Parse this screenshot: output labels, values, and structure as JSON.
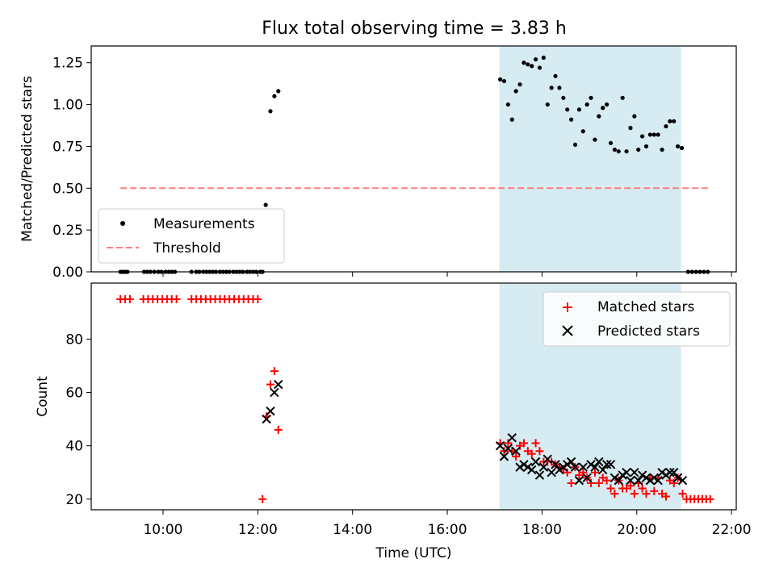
{
  "figure": {
    "title": "Flux total observing time = 3.83 h"
  },
  "chart_data": [
    {
      "type": "scatter",
      "ylabel": "Matched/Predicted stars",
      "xlim": [
        "08:29",
        "22:06"
      ],
      "ylim": [
        0,
        1.35
      ],
      "y_ticks": [
        "0.00",
        "0.25",
        "0.50",
        "0.75",
        "1.00",
        "1.25"
      ],
      "y_tick_values": [
        0,
        0.25,
        0.5,
        0.75,
        1.0,
        1.25
      ],
      "shaded_span": [
        "17:06",
        "20:56"
      ],
      "threshold": {
        "label": "Threshold",
        "value": 0.5,
        "x": [
          "09:06",
          "21:30"
        ],
        "color": "#ff7f7f"
      },
      "legend": [
        "Measurements",
        "Threshold"
      ],
      "legend_placement": "lower-left",
      "series": [
        {
          "name": "Measurements",
          "color": "#000000",
          "x": [
            "09:06",
            "09:09",
            "09:12",
            "09:15",
            "09:36",
            "09:40",
            "09:44",
            "09:49",
            "09:54",
            "09:58",
            "10:03",
            "10:07",
            "10:11",
            "10:15",
            "10:36",
            "10:42",
            "10:46",
            "10:51",
            "10:55",
            "10:59",
            "11:03",
            "11:07",
            "11:12",
            "11:16",
            "11:20",
            "11:24",
            "11:29",
            "11:33",
            "11:37",
            "11:41",
            "11:46",
            "11:50",
            "11:54",
            "11:58",
            "12:03",
            "12:06",
            "12:10",
            "12:16",
            "12:21",
            "12:26",
            "17:07",
            "17:12",
            "17:17",
            "17:22",
            "17:27",
            "17:32",
            "17:37",
            "17:42",
            "17:47",
            "17:52",
            "17:57",
            "18:02",
            "18:07",
            "18:12",
            "18:17",
            "18:22",
            "18:27",
            "18:32",
            "18:37",
            "18:42",
            "18:47",
            "18:52",
            "18:57",
            "19:02",
            "19:07",
            "19:12",
            "19:17",
            "19:22",
            "19:27",
            "19:32",
            "19:37",
            "19:42",
            "19:47",
            "19:52",
            "19:57",
            "20:02",
            "20:07",
            "20:12",
            "20:17",
            "20:22",
            "20:27",
            "20:32",
            "20:37",
            "20:42",
            "20:47",
            "20:52",
            "20:57",
            "21:05",
            "21:10",
            "21:15",
            "21:20",
            "21:25",
            "21:30"
          ],
          "y": [
            0,
            0,
            0,
            0,
            0,
            0,
            0,
            0,
            0,
            0,
            0,
            0,
            0,
            0,
            0,
            0,
            0,
            0,
            0,
            0,
            0,
            0,
            0,
            0,
            0,
            0,
            0,
            0,
            0,
            0,
            0,
            0,
            0,
            0,
            0,
            0,
            0.4,
            0.96,
            1.05,
            1.08,
            1.15,
            1.14,
            1.0,
            0.91,
            1.08,
            1.12,
            1.25,
            1.24,
            1.23,
            1.27,
            1.22,
            1.28,
            1.0,
            1.1,
            1.17,
            1.1,
            1.04,
            0.97,
            0.91,
            0.76,
            0.97,
            0.84,
            1.0,
            1.04,
            0.79,
            0.93,
            0.98,
            1.0,
            0.77,
            0.73,
            0.72,
            1.04,
            0.72,
            0.86,
            0.93,
            0.73,
            0.81,
            0.75,
            0.82,
            0.82,
            0.82,
            0.73,
            0.87,
            0.9,
            0.9,
            0.75,
            0.74,
            0,
            0,
            0,
            0,
            0,
            0
          ]
        }
      ]
    },
    {
      "type": "scatter",
      "xlabel": "Time (UTC)",
      "ylabel": "Count",
      "xlim": [
        "08:29",
        "22:06"
      ],
      "ylim": [
        16,
        101
      ],
      "x_ticks": [
        "10:00",
        "12:00",
        "14:00",
        "16:00",
        "18:00",
        "20:00",
        "22:00"
      ],
      "y_ticks": [
        "20",
        "40",
        "60",
        "80"
      ],
      "y_tick_values": [
        20,
        40,
        60,
        80
      ],
      "shaded_span": [
        "17:06",
        "20:56"
      ],
      "legend": [
        "Matched stars",
        "Predicted stars"
      ],
      "legend_placement": "upper-right",
      "series": [
        {
          "name": "Matched stars",
          "color": "#ff0000",
          "x": [
            "09:06",
            "09:12",
            "09:18",
            "09:35",
            "09:41",
            "09:47",
            "09:53",
            "09:59",
            "10:05",
            "10:11",
            "10:17",
            "10:36",
            "10:42",
            "10:48",
            "10:54",
            "11:00",
            "11:06",
            "11:12",
            "11:18",
            "11:24",
            "11:30",
            "11:36",
            "11:42",
            "11:48",
            "11:54",
            "12:00",
            "12:06",
            "12:11",
            "12:16",
            "12:21",
            "12:26",
            "17:07",
            "17:12",
            "17:17",
            "17:22",
            "17:27",
            "17:32",
            "17:37",
            "17:42",
            "17:47",
            "17:52",
            "17:57",
            "18:02",
            "18:07",
            "18:12",
            "18:17",
            "18:22",
            "18:27",
            "18:32",
            "18:37",
            "18:42",
            "18:47",
            "18:52",
            "18:57",
            "19:02",
            "19:07",
            "19:12",
            "19:17",
            "19:22",
            "19:27",
            "19:32",
            "19:37",
            "19:42",
            "19:47",
            "19:52",
            "19:57",
            "20:02",
            "20:07",
            "20:12",
            "20:17",
            "20:22",
            "20:27",
            "20:32",
            "20:37",
            "20:42",
            "20:47",
            "20:52",
            "20:58",
            "21:03",
            "21:08",
            "21:13",
            "21:18",
            "21:23",
            "21:28",
            "21:33"
          ],
          "y": [
            95,
            95,
            95,
            95,
            95,
            95,
            95,
            95,
            95,
            95,
            95,
            95,
            95,
            95,
            95,
            95,
            95,
            95,
            95,
            95,
            95,
            95,
            95,
            95,
            95,
            95,
            20,
            51,
            63,
            68,
            46,
            41,
            38,
            41,
            38,
            36,
            40,
            41,
            38,
            37,
            41,
            38,
            34,
            34,
            34,
            33,
            32,
            31,
            30,
            26,
            32,
            29,
            30,
            28,
            26,
            30,
            26,
            28,
            27,
            24,
            22,
            27,
            24,
            24,
            25,
            22,
            26,
            24,
            22,
            28,
            23,
            28,
            22,
            21,
            27,
            26,
            28,
            22,
            20,
            20,
            20,
            20,
            20,
            20,
            20
          ],
          "marker": "+"
        },
        {
          "name": "Predicted stars",
          "color": "#000000",
          "x": [
            "12:11",
            "12:16",
            "12:21",
            "12:26",
            "17:07",
            "17:12",
            "17:17",
            "17:22",
            "17:27",
            "17:32",
            "17:37",
            "17:42",
            "17:47",
            "17:52",
            "17:57",
            "18:02",
            "18:07",
            "18:12",
            "18:17",
            "18:22",
            "18:27",
            "18:32",
            "18:37",
            "18:42",
            "18:47",
            "18:52",
            "18:57",
            "19:02",
            "19:07",
            "19:12",
            "19:17",
            "19:22",
            "19:27",
            "19:32",
            "19:37",
            "19:42",
            "19:47",
            "19:52",
            "19:57",
            "20:02",
            "20:07",
            "20:12",
            "20:17",
            "20:22",
            "20:27",
            "20:32",
            "20:37",
            "20:42",
            "20:47",
            "20:52",
            "20:58"
          ],
          "y": [
            50,
            53,
            60,
            63,
            40,
            36,
            39,
            43,
            38,
            32,
            33,
            32,
            31,
            34,
            29,
            32,
            35,
            30,
            33,
            31,
            32,
            33,
            34,
            32,
            27,
            32,
            28,
            33,
            32,
            34,
            31,
            33,
            33,
            28,
            27,
            29,
            30,
            27,
            30,
            27,
            29,
            28,
            27,
            28,
            27,
            30,
            29,
            30,
            30,
            28,
            27
          ],
          "marker": "x"
        }
      ]
    }
  ]
}
